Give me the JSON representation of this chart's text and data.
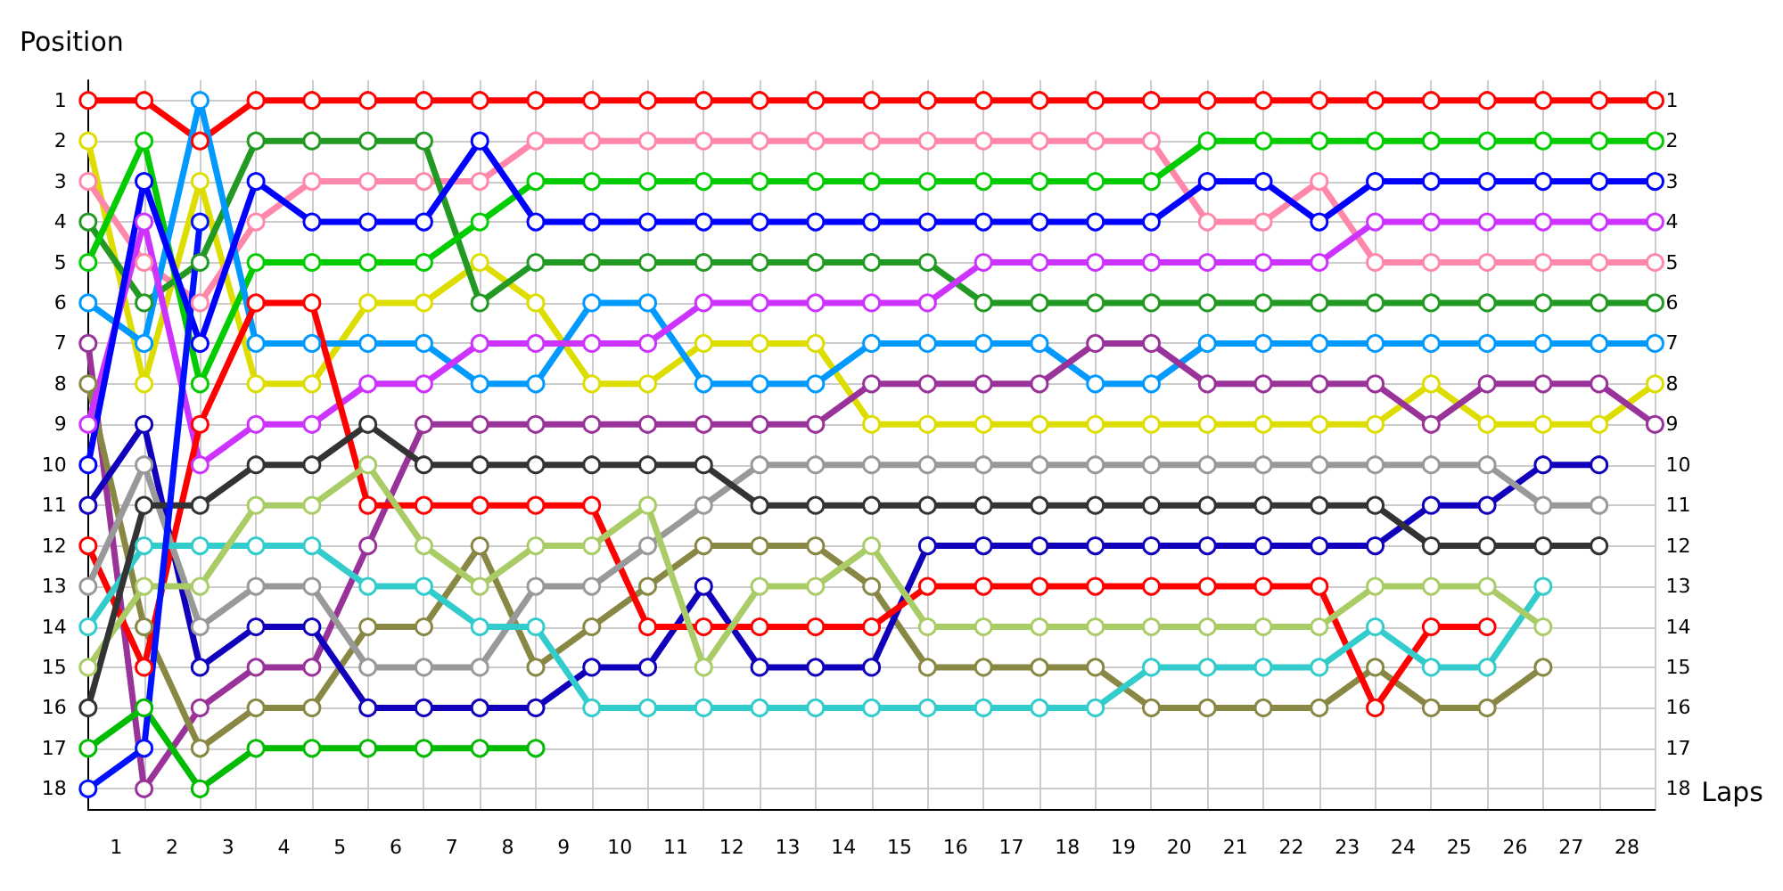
{
  "chart_data": {
    "type": "line",
    "xlabel": "Laps",
    "ylabel": "Position",
    "x": [
      0,
      1,
      2,
      3,
      4,
      5,
      6,
      7,
      8,
      9,
      10,
      11,
      12,
      13,
      14,
      15,
      16,
      17,
      18,
      19,
      20,
      21,
      22,
      23,
      24,
      25,
      26,
      27,
      28
    ],
    "xlim": [
      0,
      28
    ],
    "xticks": [
      {
        "value": 0,
        "label": null
      },
      {
        "value": 0.5,
        "label": "1"
      },
      {
        "value": 1,
        "label": null
      },
      {
        "value": 1.5,
        "label": "2"
      },
      {
        "value": 2,
        "label": null
      },
      {
        "value": 2.5,
        "label": "3"
      },
      {
        "value": 3,
        "label": null
      },
      {
        "value": 3.5,
        "label": "4"
      },
      {
        "value": 4,
        "label": null
      },
      {
        "value": 4.5,
        "label": "5"
      },
      {
        "value": 5,
        "label": null
      },
      {
        "value": 5.5,
        "label": "6"
      },
      {
        "value": 6,
        "label": null
      },
      {
        "value": 6.5,
        "label": "7"
      },
      {
        "value": 7,
        "label": null
      },
      {
        "value": 7.5,
        "label": "8"
      },
      {
        "value": 8,
        "label": null
      },
      {
        "value": 8.5,
        "label": "9"
      },
      {
        "value": 9,
        "label": null
      },
      {
        "value": 9.5,
        "label": "10"
      },
      {
        "value": 10,
        "label": null
      },
      {
        "value": 10.5,
        "label": "11"
      },
      {
        "value": 11,
        "label": null
      },
      {
        "value": 11.5,
        "label": "12"
      },
      {
        "value": 12,
        "label": null
      },
      {
        "value": 12.5,
        "label": "13"
      },
      {
        "value": 13,
        "label": null
      },
      {
        "value": 13.5,
        "label": "14"
      },
      {
        "value": 14,
        "label": null
      },
      {
        "value": 14.5,
        "label": "15"
      },
      {
        "value": 15,
        "label": null
      },
      {
        "value": 15.5,
        "label": "16"
      },
      {
        "value": 16,
        "label": null
      },
      {
        "value": 16.5,
        "label": "17"
      },
      {
        "value": 17,
        "label": null
      },
      {
        "value": 17.5,
        "label": "18"
      },
      {
        "value": 18,
        "label": null
      },
      {
        "value": 18.5,
        "label": "19"
      },
      {
        "value": 19,
        "label": null
      },
      {
        "value": 19.5,
        "label": "20"
      },
      {
        "value": 20,
        "label": null
      },
      {
        "value": 20.5,
        "label": "21"
      },
      {
        "value": 21,
        "label": null
      },
      {
        "value": 21.5,
        "label": "22"
      },
      {
        "value": 22,
        "label": null
      },
      {
        "value": 22.5,
        "label": "23"
      },
      {
        "value": 23,
        "label": null
      },
      {
        "value": 23.5,
        "label": "24"
      },
      {
        "value": 24,
        "label": null
      },
      {
        "value": 24.5,
        "label": "25"
      },
      {
        "value": 25,
        "label": null
      },
      {
        "value": 25.5,
        "label": "26"
      },
      {
        "value": 26,
        "label": null
      },
      {
        "value": 26.5,
        "label": "27"
      },
      {
        "value": 27,
        "label": null
      },
      {
        "value": 27.5,
        "label": "28"
      },
      {
        "value": 28,
        "label": null
      }
    ],
    "ylim": [
      18.5,
      0.5
    ],
    "yticks": [
      1,
      2,
      3,
      4,
      5,
      6,
      7,
      8,
      9,
      10,
      11,
      12,
      13,
      14,
      15,
      16,
      17,
      18
    ],
    "y2lim": [
      18.5,
      0.5
    ],
    "y2ticks": [
      1,
      2,
      3,
      4,
      5,
      6,
      7,
      8,
      9,
      10,
      11,
      12,
      13,
      14,
      15,
      16,
      17,
      18
    ],
    "grid": true,
    "marker": "circle",
    "line_style": "solid",
    "series": [
      {
        "color": "#ff0000",
        "values": [
          1,
          1,
          2,
          1,
          1,
          1,
          1,
          1,
          1,
          1,
          1,
          1,
          1,
          1,
          1,
          1,
          1,
          1,
          1,
          1,
          1,
          1,
          1,
          1,
          1,
          1,
          1,
          1,
          1
        ]
      },
      {
        "color": "#dddd00",
        "values": [
          2,
          8,
          3,
          8,
          8,
          6,
          6,
          5,
          6,
          8,
          8,
          7,
          7,
          7,
          9,
          9,
          9,
          9,
          9,
          9,
          9,
          9,
          9,
          9,
          8,
          9,
          9,
          9,
          8
        ]
      },
      {
        "color": "#ff88aa",
        "values": [
          3,
          5,
          6,
          4,
          3,
          3,
          3,
          3,
          2,
          2,
          2,
          2,
          2,
          2,
          2,
          2,
          2,
          2,
          2,
          2,
          4,
          4,
          3,
          5,
          5,
          5,
          5,
          5,
          5
        ]
      },
      {
        "color": "#229922",
        "values": [
          4,
          6,
          5,
          2,
          2,
          2,
          2,
          6,
          5,
          5,
          5,
          5,
          5,
          5,
          5,
          5,
          6,
          6,
          6,
          6,
          6,
          6,
          6,
          6,
          6,
          6,
          6,
          6,
          6
        ]
      },
      {
        "color": "#00cc00",
        "values": [
          5,
          2,
          8,
          5,
          5,
          5,
          5,
          4,
          3,
          3,
          3,
          3,
          3,
          3,
          3,
          3,
          3,
          3,
          3,
          3,
          2,
          2,
          2,
          2,
          2,
          2,
          2,
          2,
          2
        ]
      },
      {
        "color": "#0099ff",
        "values": [
          6,
          7,
          1,
          7,
          7,
          7,
          7,
          8,
          8,
          6,
          6,
          8,
          8,
          8,
          7,
          7,
          7,
          7,
          8,
          8,
          7,
          7,
          7,
          7,
          7,
          7,
          7,
          7,
          7
        ]
      },
      {
        "color": "#993399",
        "values": [
          7,
          18,
          16,
          15,
          15,
          12,
          9,
          9,
          9,
          9,
          9,
          9,
          9,
          9,
          8,
          8,
          8,
          8,
          7,
          7,
          8,
          8,
          8,
          8,
          9,
          8,
          8,
          8,
          9
        ]
      },
      {
        "color": "#888844",
        "values": [
          8,
          14,
          17,
          16,
          16,
          14,
          14,
          12,
          15,
          14,
          13,
          12,
          12,
          12,
          13,
          15,
          15,
          15,
          15,
          16,
          16,
          16,
          16,
          15,
          16,
          16,
          15,
          null,
          null
        ]
      },
      {
        "color": "#cc33ff",
        "values": [
          9,
          4,
          10,
          9,
          9,
          8,
          8,
          7,
          7,
          7,
          7,
          6,
          6,
          6,
          6,
          6,
          5,
          5,
          5,
          5,
          5,
          5,
          5,
          4,
          4,
          4,
          4,
          4,
          4
        ]
      },
      {
        "color": "#0000ff",
        "values": [
          10,
          3,
          7,
          3,
          4,
          4,
          4,
          2,
          4,
          4,
          4,
          4,
          4,
          4,
          4,
          4,
          4,
          4,
          4,
          4,
          3,
          3,
          4,
          3,
          3,
          3,
          3,
          3,
          3
        ]
      },
      {
        "color": "#1100bb",
        "values": [
          11,
          9,
          15,
          14,
          14,
          16,
          16,
          16,
          16,
          15,
          15,
          13,
          15,
          15,
          15,
          12,
          12,
          12,
          12,
          12,
          12,
          12,
          12,
          12,
          11,
          11,
          10,
          10,
          null
        ]
      },
      {
        "color": "#ff0000",
        "values": [
          12,
          15,
          9,
          6,
          6,
          11,
          11,
          11,
          11,
          11,
          14,
          14,
          14,
          14,
          14,
          13,
          13,
          13,
          13,
          13,
          13,
          13,
          13,
          16,
          14,
          14,
          null,
          null,
          null
        ]
      },
      {
        "color": "#999999",
        "values": [
          13,
          10,
          14,
          13,
          13,
          15,
          15,
          15,
          13,
          13,
          12,
          11,
          10,
          10,
          10,
          10,
          10,
          10,
          10,
          10,
          10,
          10,
          10,
          10,
          10,
          10,
          11,
          11,
          null
        ]
      },
      {
        "color": "#33cccc",
        "values": [
          14,
          12,
          12,
          12,
          12,
          13,
          13,
          14,
          14,
          16,
          16,
          16,
          16,
          16,
          16,
          16,
          16,
          16,
          16,
          15,
          15,
          15,
          15,
          14,
          15,
          15,
          13,
          null,
          null
        ]
      },
      {
        "color": "#aacc66",
        "values": [
          15,
          13,
          13,
          11,
          11,
          10,
          12,
          13,
          12,
          12,
          11,
          15,
          13,
          13,
          12,
          14,
          14,
          14,
          14,
          14,
          14,
          14,
          14,
          13,
          13,
          13,
          14,
          null,
          null
        ]
      },
      {
        "color": "#333333",
        "values": [
          16,
          11,
          11,
          10,
          10,
          9,
          10,
          10,
          10,
          10,
          10,
          10,
          11,
          11,
          11,
          11,
          11,
          11,
          11,
          11,
          11,
          11,
          11,
          11,
          12,
          12,
          12,
          12,
          null
        ]
      },
      {
        "color": "#00bb00",
        "values": [
          17,
          16,
          18,
          17,
          17,
          17,
          17,
          17,
          17,
          null,
          null,
          null,
          null,
          null,
          null,
          null,
          null,
          null,
          null,
          null,
          null,
          null,
          null,
          null,
          null,
          null,
          null,
          null,
          null
        ]
      },
      {
        "color": "#0011ff",
        "values": [
          18,
          17,
          4,
          null,
          null,
          null,
          null,
          null,
          null,
          null,
          null,
          null,
          null,
          null,
          null,
          null,
          null,
          null,
          null,
          null,
          null,
          null,
          null,
          null,
          null,
          null,
          null,
          null,
          null
        ]
      }
    ]
  }
}
